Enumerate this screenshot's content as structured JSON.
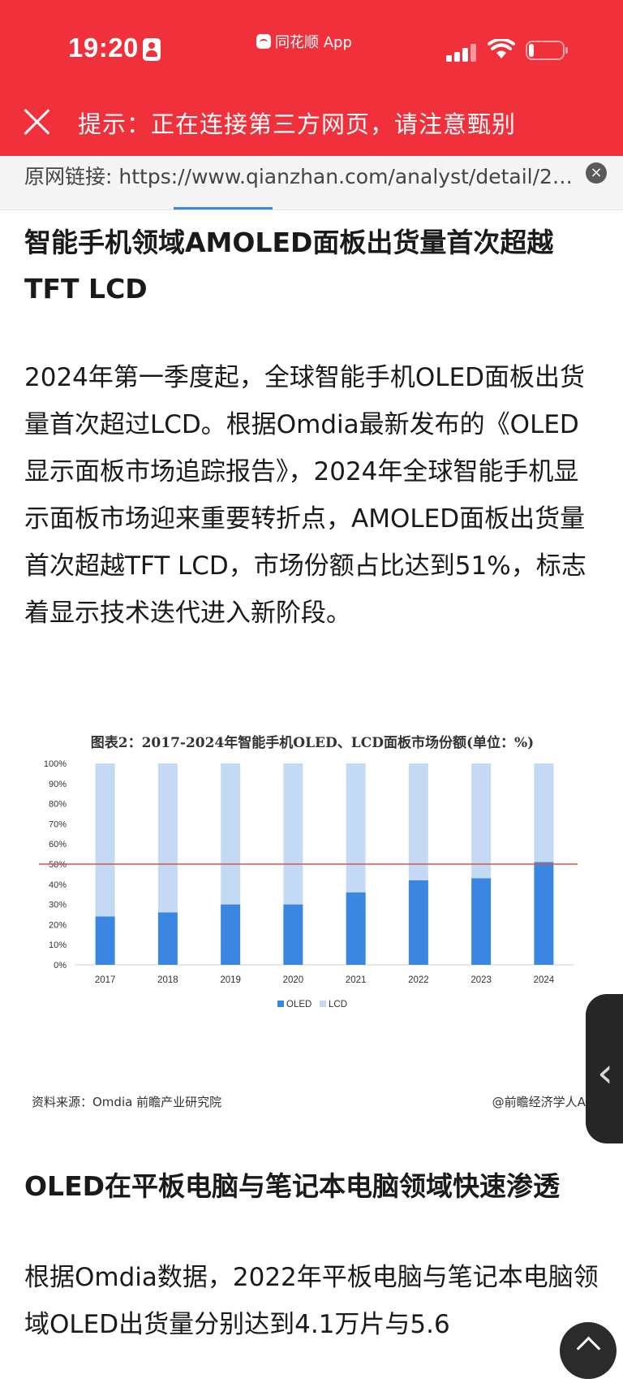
{
  "status_bar": {
    "time": "19:20",
    "app_source": "同花顺 App"
  },
  "header": {
    "notice": "提示：正在连接第三方网页，请注意甄别"
  },
  "url_bar": {
    "url": "原网链接: https://www.qianzhan.com/analyst/detail/220..."
  },
  "article": {
    "heading1": "智能手机领域AMOLED面板出货量首次超越TFT LCD",
    "paragraph1": "2024年第一季度起，全球智能手机OLED面板出货量首次超过LCD。根据Omdia最新发布的《OLED显示面板市场追踪报告》，2024年全球智能手机显示面板市场迎来重要转折点，AMOLED面板出货量首次超越TFT LCD，市场份额占比达到51%，标志着显示技术迭代进入新阶段。",
    "heading2": "OLED在平板电脑与笔记本电脑领域快速渗透",
    "paragraph2": "根据Omdia数据，2022年平板电脑与笔记本电脑领域OLED出货量分别达到4.1万片与5.6"
  },
  "figure": {
    "source": "资料来源：Omdia 前瞻产业研究院",
    "credit": "@前瞻经济学人APP"
  },
  "colors": {
    "header_bg": "#f0313c",
    "oled": "#3a86e0",
    "lcd": "#c3d9f4",
    "reference_line": "#d9534f"
  },
  "chart_data": {
    "type": "bar",
    "stacked": true,
    "title": "图表2：2017-2024年智能手机OLED、LCD面板市场份额(单位：%)",
    "categories": [
      "2017",
      "2018",
      "2019",
      "2020",
      "2021",
      "2022",
      "2023",
      "2024"
    ],
    "series": [
      {
        "name": "OLED",
        "values": [
          24,
          26,
          30,
          30,
          36,
          42,
          43,
          51
        ]
      },
      {
        "name": "LCD",
        "values": [
          76,
          74,
          70,
          70,
          64,
          58,
          57,
          49
        ]
      }
    ],
    "ylim": [
      0,
      100
    ],
    "yticks": [
      "0%",
      "10%",
      "20%",
      "30%",
      "40%",
      "50%",
      "60%",
      "70%",
      "80%",
      "90%",
      "100%"
    ],
    "reference_line": 50,
    "legend_position": "bottom",
    "grid": false
  }
}
